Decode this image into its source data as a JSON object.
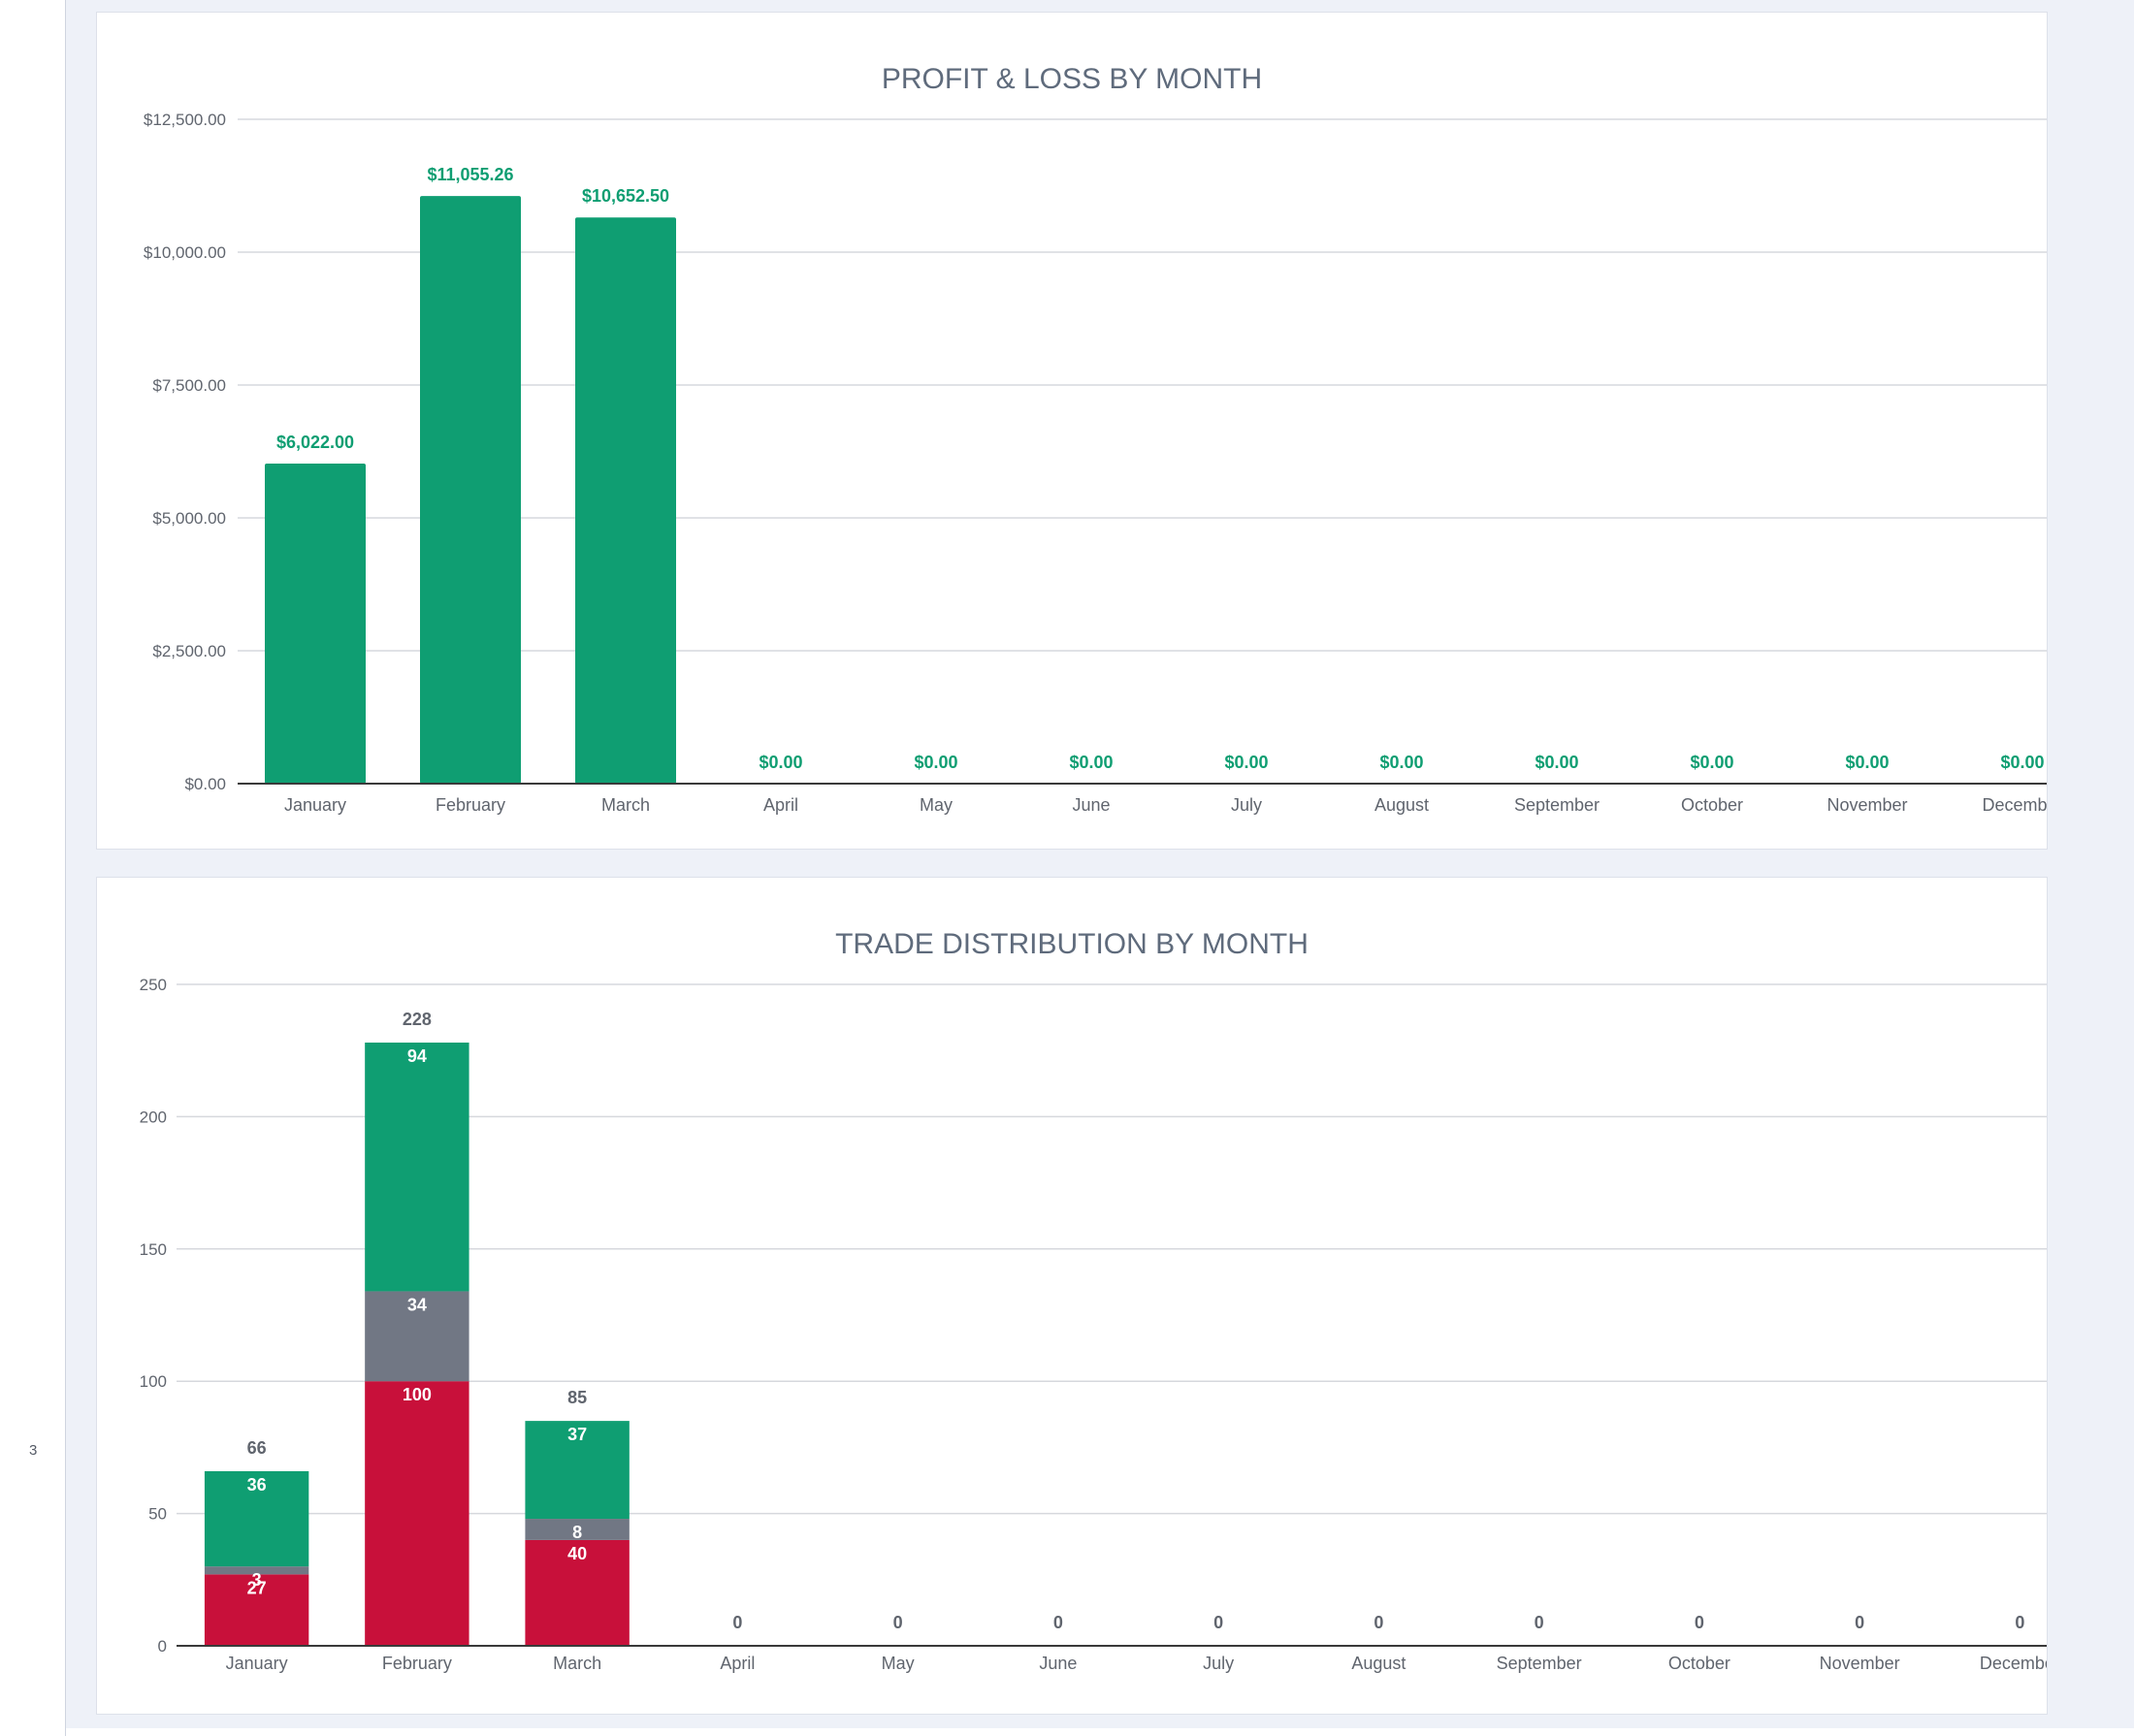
{
  "sidebar": {
    "marker": "3"
  },
  "colors": {
    "profit": "#0f9e72",
    "win": "#0f9e72",
    "breakeven": "#717784",
    "loss": "#c8103a",
    "grid": "#d6d8dd",
    "axis": "#3a3a3a"
  },
  "chart_data": [
    {
      "type": "bar",
      "title": "PROFIT & LOSS BY MONTH",
      "categories": [
        "January",
        "February",
        "March",
        "April",
        "May",
        "June",
        "July",
        "August",
        "September",
        "October",
        "November",
        "December"
      ],
      "values": [
        6022.0,
        11055.26,
        10652.5,
        0,
        0,
        0,
        0,
        0,
        0,
        0,
        0,
        0
      ],
      "data_labels": [
        "$6,022.00",
        "$11,055.26",
        "$10,652.50",
        "$0.00",
        "$0.00",
        "$0.00",
        "$0.00",
        "$0.00",
        "$0.00",
        "$0.00",
        "$0.00",
        "$0.00"
      ],
      "yticks": [
        0,
        2500,
        5000,
        7500,
        10000,
        12500
      ],
      "ytick_labels": [
        "$0.00",
        "$2,500.00",
        "$5,000.00",
        "$7,500.00",
        "$10,000.00",
        "$12,500.00"
      ],
      "ylim": [
        0,
        12500
      ],
      "grid": true
    },
    {
      "type": "bar",
      "stacked": true,
      "title": "TRADE DISTRIBUTION BY MONTH",
      "categories": [
        "January",
        "February",
        "March",
        "April",
        "May",
        "June",
        "July",
        "August",
        "September",
        "October",
        "November",
        "December"
      ],
      "series": [
        {
          "values": [
            27,
            100,
            40,
            0,
            0,
            0,
            0,
            0,
            0,
            0,
            0,
            0
          ]
        },
        {
          "values": [
            3,
            34,
            8,
            0,
            0,
            0,
            0,
            0,
            0,
            0,
            0,
            0
          ]
        },
        {
          "values": [
            36,
            94,
            37,
            0,
            0,
            0,
            0,
            0,
            0,
            0,
            0,
            0
          ]
        }
      ],
      "totals": [
        66,
        228,
        85,
        0,
        0,
        0,
        0,
        0,
        0,
        0,
        0,
        0
      ],
      "yticks": [
        0,
        50,
        100,
        150,
        200,
        250
      ],
      "ytick_labels": [
        "0",
        "50",
        "100",
        "150",
        "200",
        "250"
      ],
      "ylim": [
        0,
        250
      ],
      "grid": true
    }
  ]
}
